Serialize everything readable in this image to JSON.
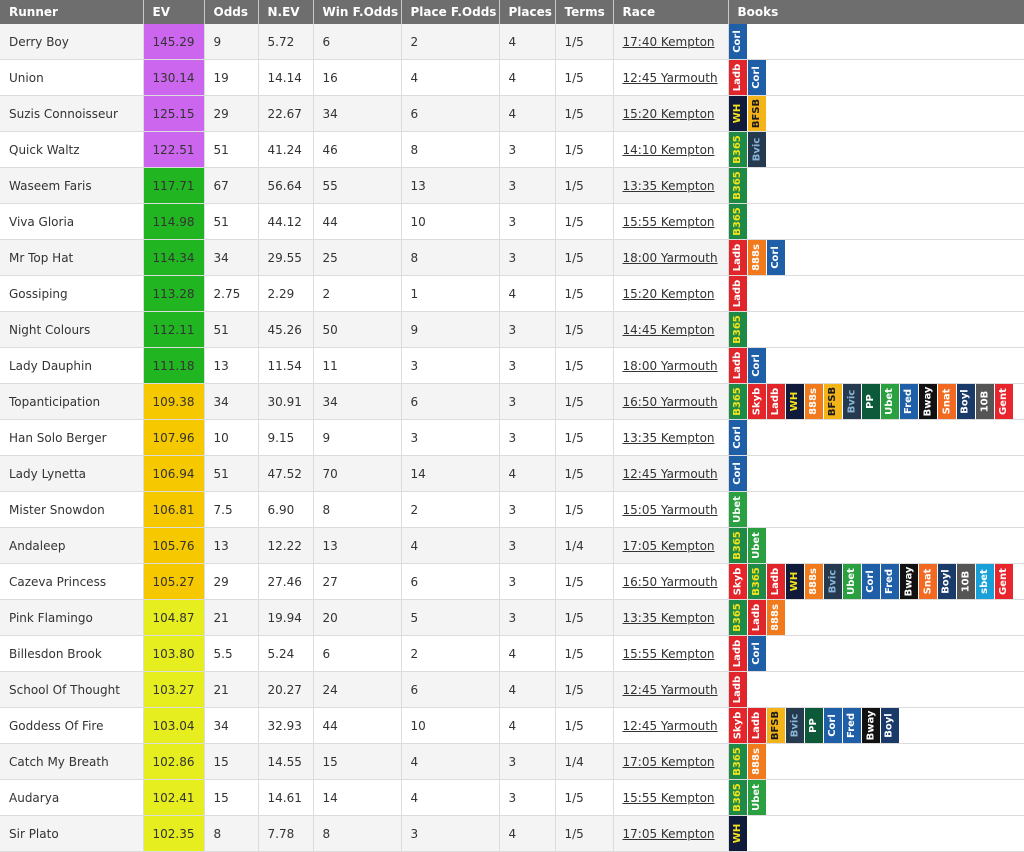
{
  "headers": [
    "Runner",
    "EV",
    "Odds",
    "N.EV",
    "Win F.Odds",
    "Place F.Odds",
    "Places",
    "Terms",
    "Race",
    "Books"
  ],
  "ev_colors": {
    "purple": "#cc66ee",
    "green": "#22b522",
    "orange": "#f5c800",
    "yellow": "#e6ee20"
  },
  "book_colors": {
    "Corl": {
      "bg": "#1e5fa8",
      "fg": "#ffffff"
    },
    "Ladb": {
      "bg": "#e0262b",
      "fg": "#ffffff"
    },
    "WH": {
      "bg": "#101a3a",
      "fg": "#f5e21a"
    },
    "BFSB": {
      "bg": "#f2b418",
      "fg": "#1a1a1a"
    },
    "B365": {
      "bg": "#1f8a46",
      "fg": "#f5e21a"
    },
    "Bvic": {
      "bg": "#253a4f",
      "fg": "#8ab4d8"
    },
    "888s": {
      "bg": "#f07a1c",
      "fg": "#ffffff"
    },
    "Skyb": {
      "bg": "#e4262a",
      "fg": "#ffffff"
    },
    "PP": {
      "bg": "#0c5a3a",
      "fg": "#ffffff"
    },
    "Ubet": {
      "bg": "#2aa040",
      "fg": "#ffffff"
    },
    "Fred": {
      "bg": "#1e5fa8",
      "fg": "#ffffff"
    },
    "Bway": {
      "bg": "#111111",
      "fg": "#ffffff"
    },
    "Snat": {
      "bg": "#f26a22",
      "fg": "#ffffff"
    },
    "Boyl": {
      "bg": "#1a3a6a",
      "fg": "#ffffff"
    },
    "10B": {
      "bg": "#555555",
      "fg": "#ffffff"
    },
    "Gent": {
      "bg": "#e8242c",
      "fg": "#ffffff"
    },
    "sbet": {
      "bg": "#1aa0d8",
      "fg": "#ffffff"
    }
  },
  "rows": [
    {
      "runner": "Derry Boy",
      "ev": "145.29",
      "color": "purple",
      "odds": "9",
      "nev": "5.72",
      "win": "6",
      "place": "2",
      "places": "4",
      "terms": "1/5",
      "race": "17:40 Kempton",
      "books": [
        "Corl"
      ]
    },
    {
      "runner": "Union",
      "ev": "130.14",
      "color": "purple",
      "odds": "19",
      "nev": "14.14",
      "win": "16",
      "place": "4",
      "places": "4",
      "terms": "1/5",
      "race": "12:45 Yarmouth",
      "books": [
        "Ladb",
        "Corl"
      ]
    },
    {
      "runner": "Suzis Connoisseur",
      "ev": "125.15",
      "color": "purple",
      "odds": "29",
      "nev": "22.67",
      "win": "34",
      "place": "6",
      "places": "4",
      "terms": "1/5",
      "race": "15:20 Kempton",
      "books": [
        "WH",
        "BFSB"
      ]
    },
    {
      "runner": "Quick Waltz",
      "ev": "122.51",
      "color": "purple",
      "odds": "51",
      "nev": "41.24",
      "win": "46",
      "place": "8",
      "places": "3",
      "terms": "1/5",
      "race": "14:10 Kempton",
      "books": [
        "B365",
        "Bvic"
      ]
    },
    {
      "runner": "Waseem Faris",
      "ev": "117.71",
      "color": "green",
      "odds": "67",
      "nev": "56.64",
      "win": "55",
      "place": "13",
      "places": "3",
      "terms": "1/5",
      "race": "13:35 Kempton",
      "books": [
        "B365"
      ]
    },
    {
      "runner": "Viva Gloria",
      "ev": "114.98",
      "color": "green",
      "odds": "51",
      "nev": "44.12",
      "win": "44",
      "place": "10",
      "places": "3",
      "terms": "1/5",
      "race": "15:55 Kempton",
      "books": [
        "B365"
      ]
    },
    {
      "runner": "Mr Top Hat",
      "ev": "114.34",
      "color": "green",
      "odds": "34",
      "nev": "29.55",
      "win": "25",
      "place": "8",
      "places": "3",
      "terms": "1/5",
      "race": "18:00 Yarmouth",
      "books": [
        "Ladb",
        "888s",
        "Corl"
      ]
    },
    {
      "runner": "Gossiping",
      "ev": "113.28",
      "color": "green",
      "odds": "2.75",
      "nev": "2.29",
      "win": "2",
      "place": "1",
      "places": "4",
      "terms": "1/5",
      "race": "15:20 Kempton",
      "books": [
        "Ladb"
      ]
    },
    {
      "runner": "Night Colours",
      "ev": "112.11",
      "color": "green",
      "odds": "51",
      "nev": "45.26",
      "win": "50",
      "place": "9",
      "places": "3",
      "terms": "1/5",
      "race": "14:45 Kempton",
      "books": [
        "B365"
      ]
    },
    {
      "runner": "Lady Dauphin",
      "ev": "111.18",
      "color": "green",
      "odds": "13",
      "nev": "11.54",
      "win": "11",
      "place": "3",
      "places": "3",
      "terms": "1/5",
      "race": "18:00 Yarmouth",
      "books": [
        "Ladb",
        "Corl"
      ]
    },
    {
      "runner": "Topanticipation",
      "ev": "109.38",
      "color": "orange",
      "odds": "34",
      "nev": "30.91",
      "win": "34",
      "place": "6",
      "places": "3",
      "terms": "1/5",
      "race": "16:50 Yarmouth",
      "books": [
        "B365",
        "Skyb",
        "Ladb",
        "WH",
        "888s",
        "BFSB",
        "Bvic",
        "PP",
        "Ubet",
        "Fred",
        "Bway",
        "Snat",
        "Boyl",
        "10B",
        "Gent"
      ]
    },
    {
      "runner": "Han Solo Berger",
      "ev": "107.96",
      "color": "orange",
      "odds": "10",
      "nev": "9.15",
      "win": "9",
      "place": "3",
      "places": "3",
      "terms": "1/5",
      "race": "13:35 Kempton",
      "books": [
        "Corl"
      ]
    },
    {
      "runner": "Lady Lynetta",
      "ev": "106.94",
      "color": "orange",
      "odds": "51",
      "nev": "47.52",
      "win": "70",
      "place": "14",
      "places": "4",
      "terms": "1/5",
      "race": "12:45 Yarmouth",
      "books": [
        "Corl"
      ]
    },
    {
      "runner": "Mister Snowdon",
      "ev": "106.81",
      "color": "orange",
      "odds": "7.5",
      "nev": "6.90",
      "win": "8",
      "place": "2",
      "places": "3",
      "terms": "1/5",
      "race": "15:05 Yarmouth",
      "books": [
        "Ubet"
      ]
    },
    {
      "runner": "Andaleep",
      "ev": "105.76",
      "color": "orange",
      "odds": "13",
      "nev": "12.22",
      "win": "13",
      "place": "4",
      "places": "3",
      "terms": "1/4",
      "race": "17:05 Kempton",
      "books": [
        "B365",
        "Ubet"
      ]
    },
    {
      "runner": "Cazeva Princess",
      "ev": "105.27",
      "color": "orange",
      "odds": "29",
      "nev": "27.46",
      "win": "27",
      "place": "6",
      "places": "3",
      "terms": "1/5",
      "race": "16:50 Yarmouth",
      "books": [
        "Skyb",
        "B365",
        "Ladb",
        "WH",
        "888s",
        "Bvic",
        "Ubet",
        "Corl",
        "Fred",
        "Bway",
        "Snat",
        "Boyl",
        "10B",
        "sbet",
        "Gent"
      ]
    },
    {
      "runner": "Pink Flamingo",
      "ev": "104.87",
      "color": "yellow",
      "odds": "21",
      "nev": "19.94",
      "win": "20",
      "place": "5",
      "places": "3",
      "terms": "1/5",
      "race": "13:35 Kempton",
      "books": [
        "B365",
        "Ladb",
        "888s"
      ]
    },
    {
      "runner": "Billesdon Brook",
      "ev": "103.80",
      "color": "yellow",
      "odds": "5.5",
      "nev": "5.24",
      "win": "6",
      "place": "2",
      "places": "4",
      "terms": "1/5",
      "race": "15:55 Kempton",
      "books": [
        "Ladb",
        "Corl"
      ]
    },
    {
      "runner": "School Of Thought",
      "ev": "103.27",
      "color": "yellow",
      "odds": "21",
      "nev": "20.27",
      "win": "24",
      "place": "6",
      "places": "4",
      "terms": "1/5",
      "race": "12:45 Yarmouth",
      "books": [
        "Ladb"
      ]
    },
    {
      "runner": "Goddess Of Fire",
      "ev": "103.04",
      "color": "yellow",
      "odds": "34",
      "nev": "32.93",
      "win": "44",
      "place": "10",
      "places": "4",
      "terms": "1/5",
      "race": "12:45 Yarmouth",
      "books": [
        "Skyb",
        "Ladb",
        "BFSB",
        "Bvic",
        "PP",
        "Corl",
        "Fred",
        "Bway",
        "Boyl"
      ]
    },
    {
      "runner": "Catch My Breath",
      "ev": "102.86",
      "color": "yellow",
      "odds": "15",
      "nev": "14.55",
      "win": "15",
      "place": "4",
      "places": "3",
      "terms": "1/4",
      "race": "17:05 Kempton",
      "books": [
        "B365",
        "888s"
      ]
    },
    {
      "runner": "Audarya",
      "ev": "102.41",
      "color": "yellow",
      "odds": "15",
      "nev": "14.61",
      "win": "14",
      "place": "4",
      "places": "3",
      "terms": "1/5",
      "race": "15:55 Kempton",
      "books": [
        "B365",
        "Ubet"
      ]
    },
    {
      "runner": "Sir Plato",
      "ev": "102.35",
      "color": "yellow",
      "odds": "8",
      "nev": "7.78",
      "win": "8",
      "place": "3",
      "places": "4",
      "terms": "1/5",
      "race": "17:05 Kempton",
      "books": [
        "WH"
      ]
    }
  ]
}
